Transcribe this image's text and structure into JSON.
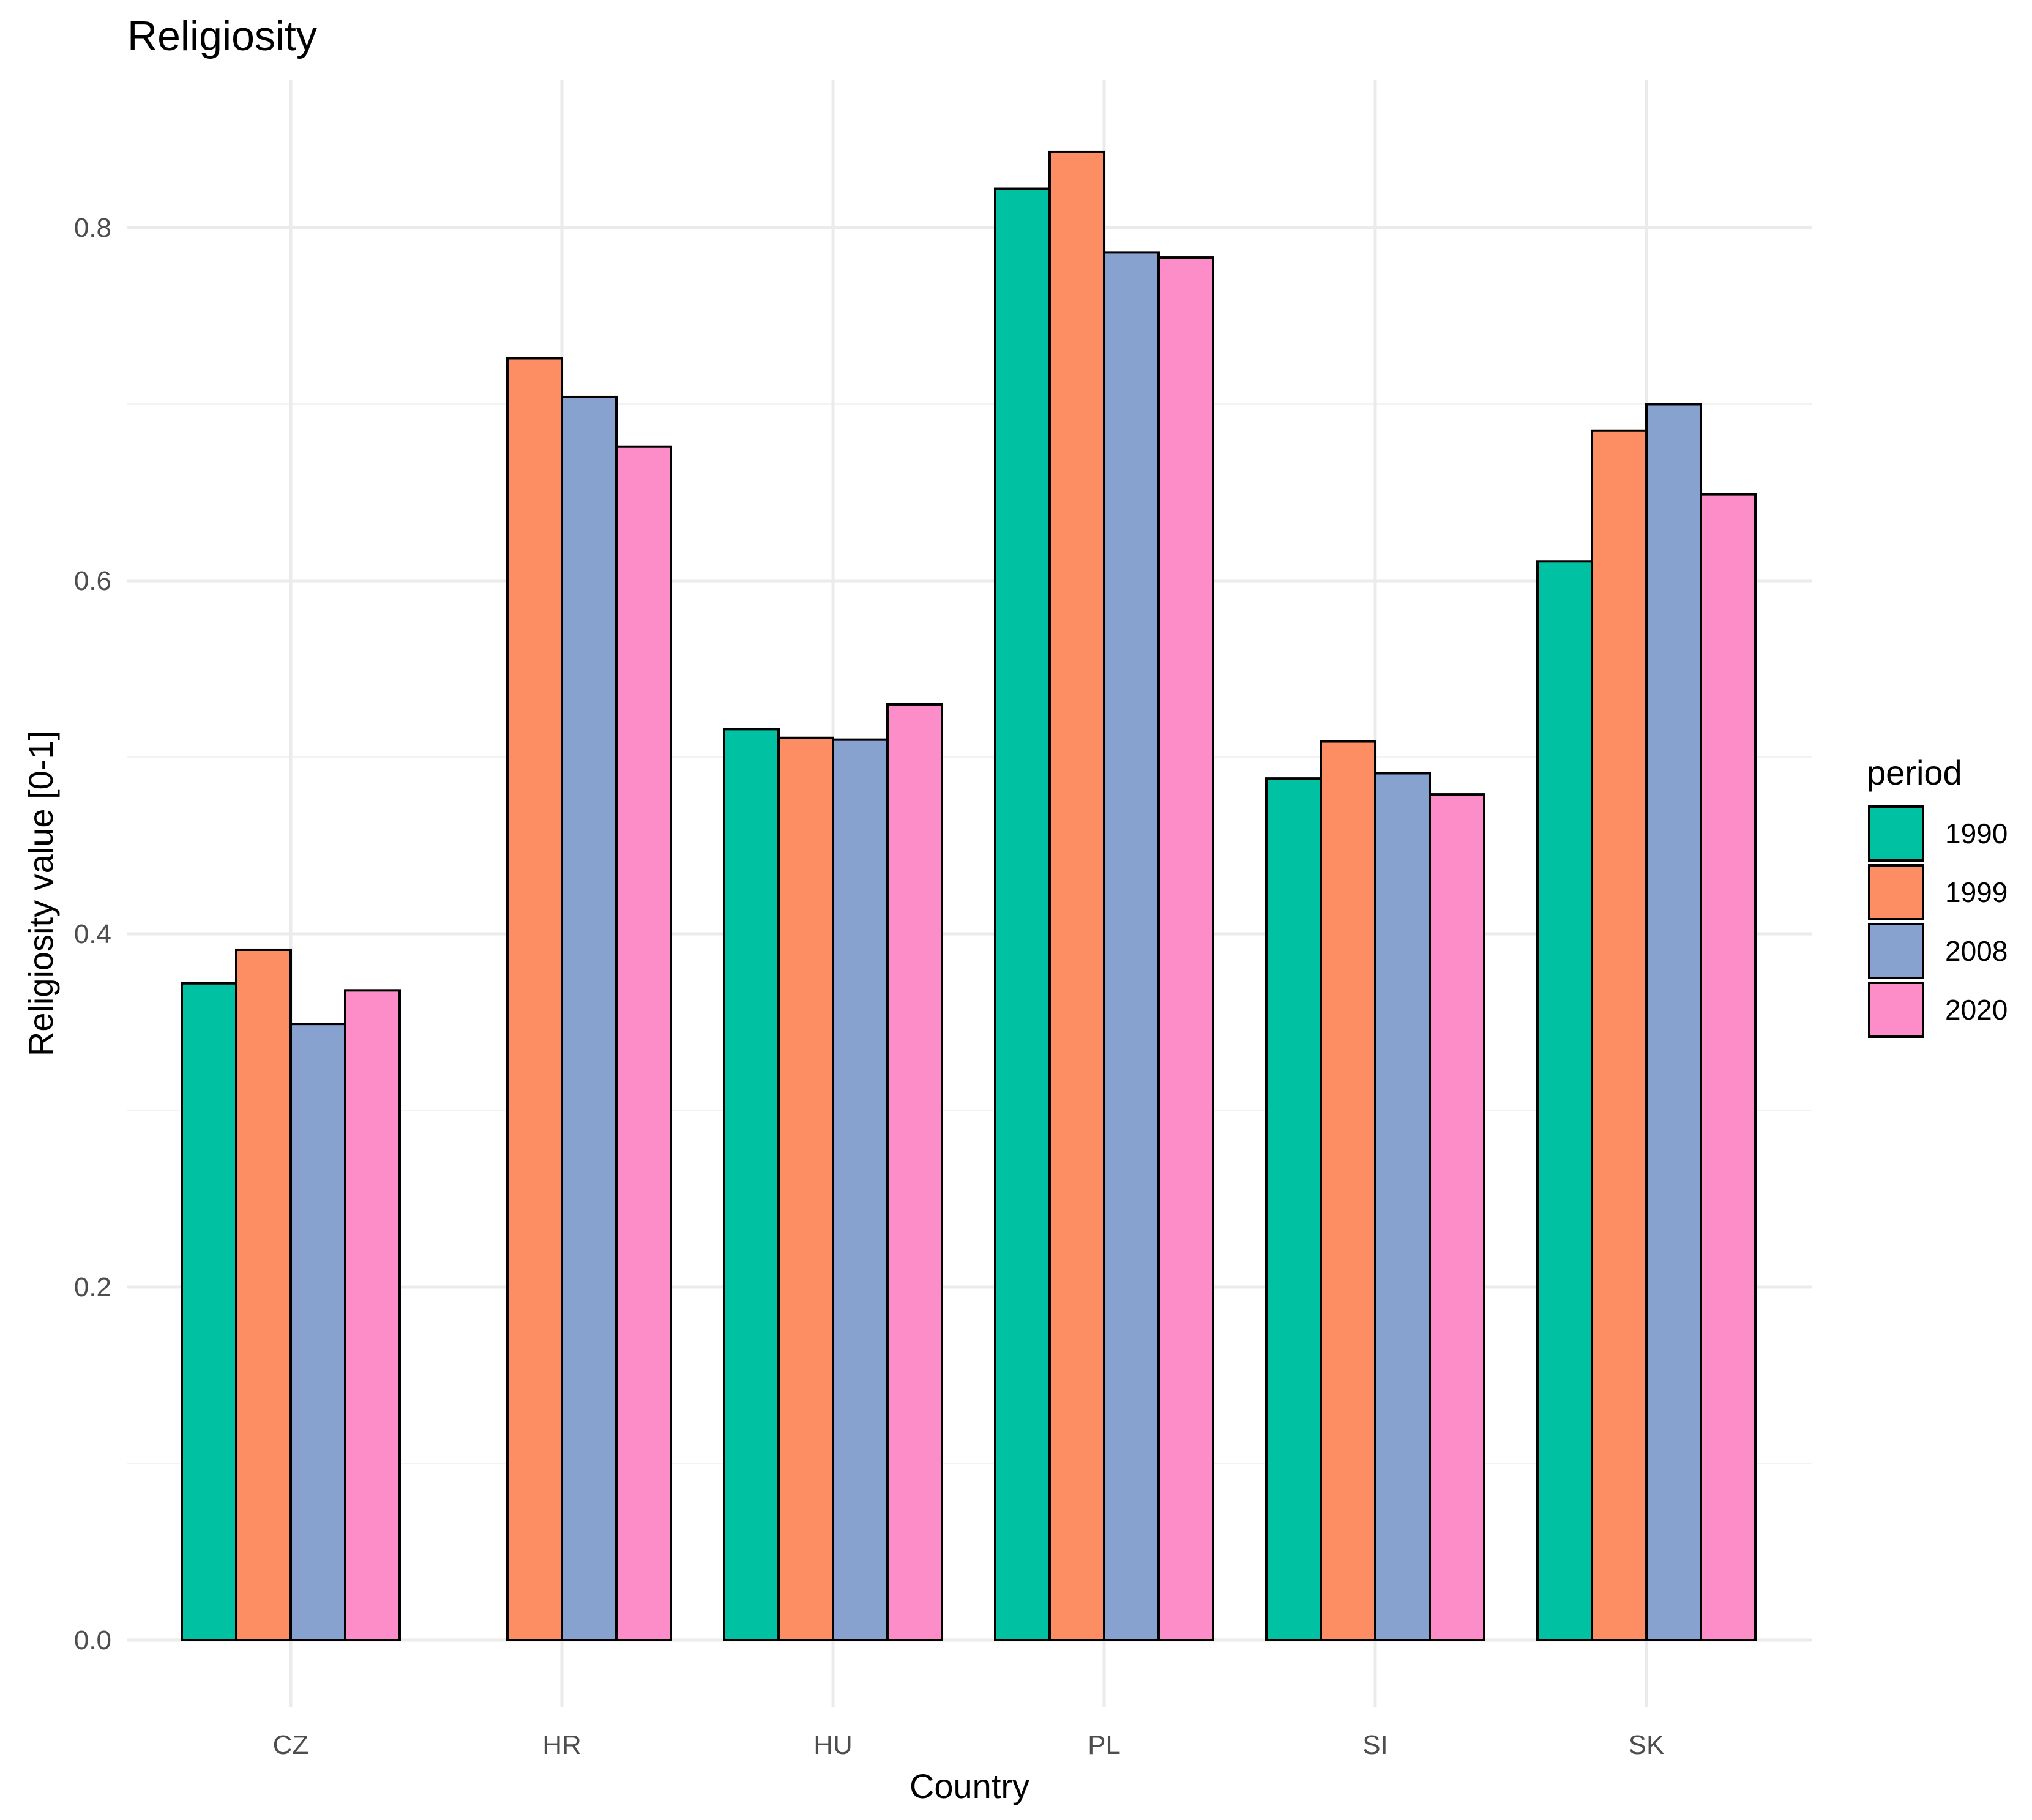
{
  "chart_data": {
    "type": "bar",
    "title": "Religiosity",
    "xlabel": "Country",
    "ylabel": "Religiosity value [0-1]",
    "categories": [
      "CZ",
      "HR",
      "HU",
      "PL",
      "SI",
      "SK"
    ],
    "ylim": [
      0,
      0.86
    ],
    "yticks": [
      0.0,
      0.2,
      0.4,
      0.6,
      0.8
    ],
    "ytick_labels": [
      "0.0",
      "0.2",
      "0.4",
      "0.6",
      "0.8"
    ],
    "grid": true,
    "legend": {
      "title": "period",
      "position": "right"
    },
    "series": [
      {
        "name": "1990",
        "color": "#00c2a3",
        "values": [
          0.372,
          0.0,
          0.516,
          0.822,
          0.488,
          0.611
        ]
      },
      {
        "name": "1999",
        "color": "#fd8d62",
        "values": [
          0.391,
          0.726,
          0.511,
          0.843,
          0.509,
          0.685
        ]
      },
      {
        "name": "2008",
        "color": "#88a2d0",
        "values": [
          0.349,
          0.704,
          0.51,
          0.786,
          0.491,
          0.7
        ]
      },
      {
        "name": "2020",
        "color": "#fd8dc8",
        "values": [
          0.368,
          0.676,
          0.53,
          0.783,
          0.479,
          0.649
        ]
      }
    ]
  }
}
